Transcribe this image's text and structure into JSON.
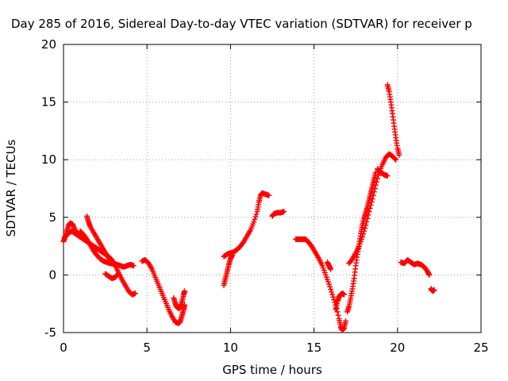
{
  "chart_data": {
    "type": "scatter",
    "title": "Day 285 of 2016, Sidereal Day-to-day VTEC variation (SDTVAR) for receiver p",
    "xlabel": "GPS time / hours",
    "ylabel": "SDTVAR / TECUs",
    "xlim": [
      0,
      25
    ],
    "ylim": [
      -5,
      20
    ],
    "xticks": [
      0,
      5,
      10,
      15,
      20,
      25
    ],
    "yticks": [
      -5,
      0,
      5,
      10,
      15,
      20
    ],
    "grid": true,
    "marker": "+",
    "marker_color": "#ff0000",
    "series": [
      {
        "segments": [
          [
            [
              0.0,
              2.9
            ],
            [
              0.1,
              3.3
            ],
            [
              0.2,
              3.8
            ],
            [
              0.3,
              4.3
            ],
            [
              0.4,
              4.5
            ],
            [
              0.55,
              4.4
            ],
            [
              0.7,
              3.9
            ],
            [
              0.85,
              3.5
            ]
          ],
          [
            [
              0.05,
              3.2
            ],
            [
              0.2,
              3.5
            ],
            [
              0.35,
              3.7
            ],
            [
              0.5,
              3.8
            ],
            [
              0.7,
              3.6
            ],
            [
              0.9,
              3.4
            ],
            [
              1.1,
              3.2
            ],
            [
              1.3,
              3.0
            ],
            [
              1.5,
              2.8
            ],
            [
              1.7,
              2.6
            ],
            [
              1.9,
              2.4
            ],
            [
              2.1,
              2.2
            ],
            [
              2.3,
              2.0
            ],
            [
              2.5,
              1.8
            ],
            [
              2.7,
              1.6
            ],
            [
              2.9,
              1.3
            ],
            [
              3.1,
              0.8
            ],
            [
              3.3,
              0.2
            ],
            [
              3.5,
              -0.4
            ],
            [
              3.7,
              -0.9
            ],
            [
              3.9,
              -1.4
            ],
            [
              4.1,
              -1.7
            ],
            [
              4.3,
              -1.6
            ]
          ],
          [
            [
              1.0,
              3.8
            ],
            [
              1.2,
              3.5
            ],
            [
              1.4,
              3.1
            ],
            [
              1.6,
              2.6
            ],
            [
              1.8,
              2.1
            ],
            [
              2.0,
              1.7
            ],
            [
              2.2,
              1.4
            ],
            [
              2.4,
              1.2
            ],
            [
              2.6,
              1.1
            ],
            [
              2.8,
              1.0
            ],
            [
              3.0,
              1.0
            ],
            [
              3.2,
              0.9
            ],
            [
              3.4,
              0.8
            ],
            [
              3.6,
              0.7
            ],
            [
              3.8,
              0.8
            ],
            [
              4.0,
              0.9
            ],
            [
              4.2,
              0.8
            ]
          ],
          [
            [
              1.4,
              5.1
            ],
            [
              1.5,
              4.6
            ],
            [
              1.6,
              4.2
            ],
            [
              1.8,
              3.7
            ],
            [
              2.0,
              3.2
            ],
            [
              2.2,
              2.7
            ],
            [
              2.4,
              2.2
            ],
            [
              2.6,
              1.7
            ],
            [
              2.8,
              1.3
            ],
            [
              3.0,
              0.9
            ]
          ],
          [
            [
              2.5,
              0.1
            ],
            [
              2.7,
              -0.1
            ],
            [
              2.9,
              -0.3
            ],
            [
              3.1,
              -0.2
            ],
            [
              3.2,
              0.0
            ]
          ],
          [
            [
              4.7,
              1.2
            ],
            [
              4.9,
              1.3
            ],
            [
              5.1,
              1.0
            ],
            [
              5.3,
              0.5
            ],
            [
              5.5,
              -0.2
            ],
            [
              5.7,
              -0.9
            ],
            [
              5.9,
              -1.6
            ],
            [
              6.1,
              -2.3
            ],
            [
              6.3,
              -3.0
            ],
            [
              6.5,
              -3.6
            ],
            [
              6.7,
              -4.1
            ],
            [
              6.9,
              -4.2
            ],
            [
              7.0,
              -4.0
            ],
            [
              7.1,
              -3.5
            ],
            [
              7.2,
              -3.0
            ],
            [
              7.25,
              -2.6
            ]
          ],
          [
            [
              6.6,
              -2.0
            ],
            [
              6.7,
              -2.5
            ],
            [
              6.8,
              -2.8
            ],
            [
              6.9,
              -2.9
            ],
            [
              7.0,
              -2.8
            ],
            [
              7.1,
              -2.3
            ],
            [
              7.2,
              -1.7
            ],
            [
              7.25,
              -1.4
            ]
          ],
          [
            [
              9.6,
              -0.9
            ],
            [
              9.7,
              -0.3
            ],
            [
              9.8,
              0.3
            ],
            [
              9.9,
              0.9
            ],
            [
              10.0,
              1.4
            ],
            [
              10.1,
              1.7
            ]
          ],
          [
            [
              9.6,
              1.6
            ],
            [
              9.8,
              1.8
            ],
            [
              10.0,
              1.9
            ],
            [
              10.2,
              2.0
            ],
            [
              10.4,
              2.2
            ],
            [
              10.6,
              2.5
            ],
            [
              10.8,
              2.9
            ],
            [
              11.0,
              3.4
            ],
            [
              11.2,
              3.9
            ],
            [
              11.4,
              4.6
            ],
            [
              11.6,
              5.5
            ],
            [
              11.7,
              6.3
            ],
            [
              11.8,
              6.9
            ],
            [
              11.9,
              7.1
            ],
            [
              12.1,
              7.0
            ],
            [
              12.3,
              6.9
            ]
          ],
          [
            [
              12.5,
              5.1
            ],
            [
              12.6,
              5.3
            ],
            [
              12.8,
              5.4
            ],
            [
              13.0,
              5.4
            ],
            [
              13.2,
              5.5
            ]
          ],
          [
            [
              13.9,
              3.1
            ],
            [
              14.1,
              3.1
            ],
            [
              14.3,
              3.1
            ],
            [
              14.5,
              3.1
            ],
            [
              14.7,
              2.8
            ],
            [
              14.9,
              2.4
            ],
            [
              15.1,
              1.9
            ],
            [
              15.3,
              1.4
            ],
            [
              15.5,
              0.8
            ],
            [
              15.7,
              0.0
            ],
            [
              15.9,
              -0.8
            ],
            [
              16.1,
              -1.7
            ],
            [
              16.3,
              -2.6
            ],
            [
              16.5,
              -3.8
            ],
            [
              16.6,
              -4.5
            ],
            [
              16.7,
              -4.8
            ],
            [
              16.8,
              -4.6
            ],
            [
              16.9,
              -4.0
            ]
          ],
          [
            [
              15.8,
              1.1
            ],
            [
              15.9,
              0.8
            ],
            [
              16.0,
              0.5
            ]
          ],
          [
            [
              16.3,
              -3.0
            ],
            [
              16.4,
              -2.3
            ],
            [
              16.5,
              -1.9
            ],
            [
              16.6,
              -1.7
            ],
            [
              16.7,
              -1.6
            ],
            [
              16.8,
              -1.7
            ]
          ],
          [
            [
              17.0,
              -3.2
            ],
            [
              17.1,
              -2.7
            ],
            [
              17.2,
              -2.0
            ],
            [
              17.3,
              -1.2
            ],
            [
              17.4,
              -0.3
            ],
            [
              17.5,
              0.8
            ],
            [
              17.6,
              1.8
            ],
            [
              17.7,
              2.7
            ],
            [
              17.8,
              3.6
            ],
            [
              17.9,
              4.3
            ],
            [
              18.0,
              4.9
            ],
            [
              18.1,
              5.4
            ],
            [
              18.2,
              5.9
            ],
            [
              18.3,
              6.5
            ],
            [
              18.4,
              7.1
            ],
            [
              18.5,
              7.7
            ],
            [
              18.6,
              8.3
            ],
            [
              18.7,
              8.9
            ]
          ],
          [
            [
              17.1,
              1.0
            ],
            [
              17.3,
              1.4
            ],
            [
              17.5,
              1.9
            ],
            [
              17.7,
              2.5
            ],
            [
              17.9,
              3.3
            ],
            [
              18.1,
              4.3
            ],
            [
              18.3,
              5.5
            ],
            [
              18.5,
              6.6
            ],
            [
              18.7,
              7.8
            ],
            [
              18.9,
              8.9
            ],
            [
              19.1,
              9.6
            ],
            [
              19.3,
              10.2
            ],
            [
              19.5,
              10.5
            ],
            [
              19.7,
              10.3
            ],
            [
              19.9,
              10.0
            ]
          ],
          [
            [
              18.8,
              9.2
            ],
            [
              19.0,
              8.9
            ],
            [
              19.2,
              8.7
            ],
            [
              19.4,
              8.6
            ]
          ],
          [
            [
              19.4,
              16.5
            ],
            [
              19.5,
              15.9
            ],
            [
              19.6,
              15.0
            ],
            [
              19.7,
              14.0
            ],
            [
              19.8,
              12.9
            ],
            [
              19.9,
              11.9
            ],
            [
              20.0,
              11.0
            ],
            [
              20.1,
              10.4
            ]
          ],
          [
            [
              20.2,
              1.1
            ],
            [
              20.4,
              1.0
            ],
            [
              20.6,
              1.3
            ],
            [
              20.8,
              1.1
            ],
            [
              21.0,
              0.9
            ],
            [
              21.2,
              1.0
            ],
            [
              21.4,
              0.9
            ],
            [
              21.6,
              0.7
            ],
            [
              21.8,
              0.3
            ],
            [
              21.9,
              0.0
            ]
          ],
          [
            [
              22.0,
              -1.2
            ],
            [
              22.1,
              -1.4
            ],
            [
              22.2,
              -1.3
            ]
          ]
        ]
      }
    ]
  }
}
